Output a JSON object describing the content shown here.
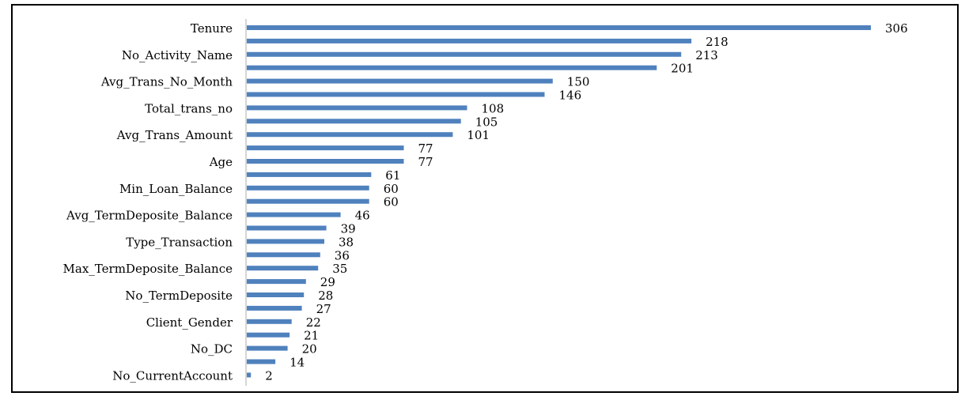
{
  "colors": {
    "bar": "#4f81bd",
    "frame": "#000000",
    "axis": "#c8c8c8"
  },
  "chart_data": {
    "type": "bar",
    "orientation": "horizontal",
    "title": "",
    "xlabel": "",
    "ylabel": "",
    "grid": false,
    "legend": "none",
    "xlim": [
      0,
      306
    ],
    "labeled_categories": [
      "Tenure",
      "No_Activity_Name",
      "Avg_Trans_No_Month",
      "Total_trans_no",
      "Avg_Trans_Amount",
      "Age",
      "Min_Loan_Balance",
      "Avg_TermDeposite_Balance",
      "Type_Transaction",
      "Max_TermDeposite_Balance",
      "No_TermDeposite",
      "Client_Gender",
      "No_DC",
      "No_CurrentAccount"
    ],
    "bars": [
      {
        "label": "Tenure",
        "value": 306
      },
      {
        "label": "",
        "value": 218
      },
      {
        "label": "No_Activity_Name",
        "value": 213
      },
      {
        "label": "",
        "value": 201
      },
      {
        "label": "Avg_Trans_No_Month",
        "value": 150
      },
      {
        "label": "",
        "value": 146
      },
      {
        "label": "Total_trans_no",
        "value": 108
      },
      {
        "label": "",
        "value": 105
      },
      {
        "label": "Avg_Trans_Amount",
        "value": 101
      },
      {
        "label": "",
        "value": 77
      },
      {
        "label": "Age",
        "value": 77
      },
      {
        "label": "",
        "value": 61
      },
      {
        "label": "Min_Loan_Balance",
        "value": 60
      },
      {
        "label": "",
        "value": 60
      },
      {
        "label": "Avg_TermDeposite_Balance",
        "value": 46
      },
      {
        "label": "",
        "value": 39
      },
      {
        "label": "Type_Transaction",
        "value": 38
      },
      {
        "label": "",
        "value": 36
      },
      {
        "label": "Max_TermDeposite_Balance",
        "value": 35
      },
      {
        "label": "",
        "value": 29
      },
      {
        "label": "No_TermDeposite",
        "value": 28
      },
      {
        "label": "",
        "value": 27
      },
      {
        "label": "Client_Gender",
        "value": 22
      },
      {
        "label": "",
        "value": 21
      },
      {
        "label": "No_DC",
        "value": 20
      },
      {
        "label": "",
        "value": 14
      },
      {
        "label": "No_CurrentAccount",
        "value": 2
      }
    ]
  }
}
